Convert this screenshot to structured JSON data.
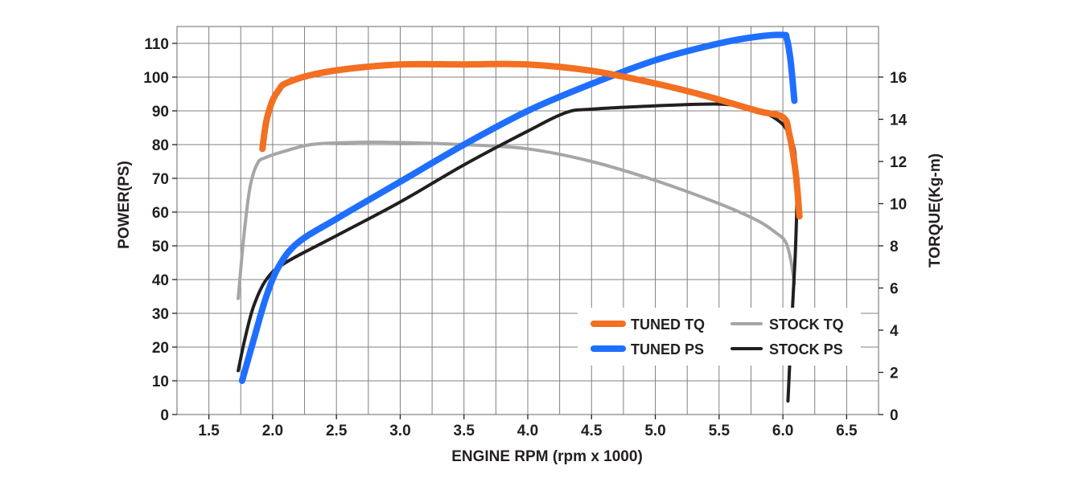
{
  "chart_data": {
    "type": "line",
    "xlabel": "ENGINE RPM (rpm x 1000)",
    "ylabel": "POWER(PS)",
    "y2label": "TORQUE(Kg-m)",
    "xlim": [
      1.25,
      6.75
    ],
    "ylim": [
      0,
      115
    ],
    "y2lim": [
      0,
      18.4
    ],
    "x_ticks": [
      "1.5",
      "2.0",
      "2.5",
      "3.0",
      "3.5",
      "4.0",
      "4.5",
      "5.0",
      "5.5",
      "6.0",
      "6.5"
    ],
    "y_ticks": [
      "0",
      "10",
      "20",
      "30",
      "40",
      "50",
      "60",
      "70",
      "80",
      "90",
      "100",
      "110"
    ],
    "y2_ticks": [
      "0",
      "2",
      "4",
      "6",
      "8",
      "10",
      "12",
      "14",
      "16"
    ],
    "grid": true,
    "legend_position": "lower-right",
    "series": [
      {
        "name": "TUNED TQ",
        "axis": "y2",
        "color": "#f36f21",
        "x": [
          1.92,
          1.95,
          2.0,
          2.05,
          2.1,
          2.3,
          2.6,
          3.0,
          3.5,
          4.0,
          4.5,
          5.0,
          5.4,
          5.8,
          6.0,
          6.05,
          6.1,
          6.13
        ],
        "y": [
          12.6,
          13.9,
          14.9,
          15.4,
          15.7,
          16.1,
          16.4,
          16.6,
          16.6,
          16.6,
          16.3,
          15.7,
          15.1,
          14.4,
          14.1,
          13.3,
          11.5,
          9.4
        ]
      },
      {
        "name": "TUNED PS",
        "axis": "y",
        "color": "#1f6fff",
        "x": [
          1.76,
          1.85,
          1.95,
          2.05,
          2.2,
          2.5,
          3.0,
          3.5,
          4.0,
          4.5,
          5.0,
          5.5,
          5.8,
          6.0,
          6.03,
          6.06,
          6.09
        ],
        "y": [
          10,
          22,
          35,
          44,
          51,
          58,
          69,
          80,
          90,
          98,
          105,
          110,
          112,
          112.5,
          111.5,
          105,
          93
        ]
      },
      {
        "name": "STOCK TQ",
        "axis": "y2",
        "color": "#a6a6a6",
        "x": [
          1.73,
          1.77,
          1.82,
          1.88,
          1.95,
          2.1,
          2.3,
          2.6,
          3.0,
          3.5,
          4.0,
          4.5,
          5.0,
          5.5,
          5.8,
          5.95,
          6.02,
          6.06,
          6.09
        ],
        "y": [
          5.5,
          8.2,
          10.7,
          11.9,
          12.2,
          12.5,
          12.8,
          12.9,
          12.9,
          12.8,
          12.6,
          12.0,
          11.1,
          10.0,
          9.2,
          8.6,
          8.2,
          7.4,
          6.2
        ]
      },
      {
        "name": "STOCK PS",
        "axis": "y",
        "color": "#231f20",
        "x": [
          1.73,
          1.78,
          1.85,
          1.95,
          2.1,
          2.5,
          3.0,
          3.5,
          4.0,
          4.3,
          4.5,
          5.0,
          5.5,
          5.7,
          5.85,
          5.95,
          6.02,
          6.08,
          6.1,
          6.11,
          6.1,
          6.08,
          6.06,
          6.04
        ],
        "y": [
          13,
          22,
          32,
          40,
          45,
          53,
          63,
          74,
          84,
          89.5,
          90.5,
          91.5,
          92,
          91,
          89.5,
          87.5,
          85,
          80,
          75,
          65,
          50,
          35,
          20,
          4
        ]
      }
    ]
  }
}
